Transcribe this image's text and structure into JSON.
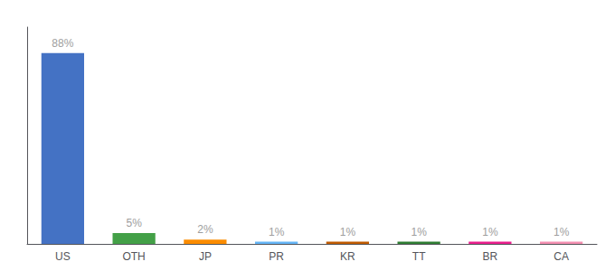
{
  "chart_data": {
    "type": "bar",
    "categories": [
      "US",
      "OTH",
      "JP",
      "PR",
      "KR",
      "TT",
      "BR",
      "CA"
    ],
    "values": [
      88,
      5,
      2,
      1,
      1,
      1,
      1,
      1
    ],
    "value_labels": [
      "88%",
      "5%",
      "2%",
      "1%",
      "1%",
      "1%",
      "1%",
      "1%"
    ],
    "data_labels": true,
    "colors": [
      "#4472c4",
      "#43a047",
      "#fb8c00",
      "#64b5f6",
      "#bf5a00",
      "#2e7d32",
      "#e91e8c",
      "#f48fb1"
    ],
    "ylim": [
      0,
      100
    ],
    "tick_labels": "x",
    "grid": false
  }
}
